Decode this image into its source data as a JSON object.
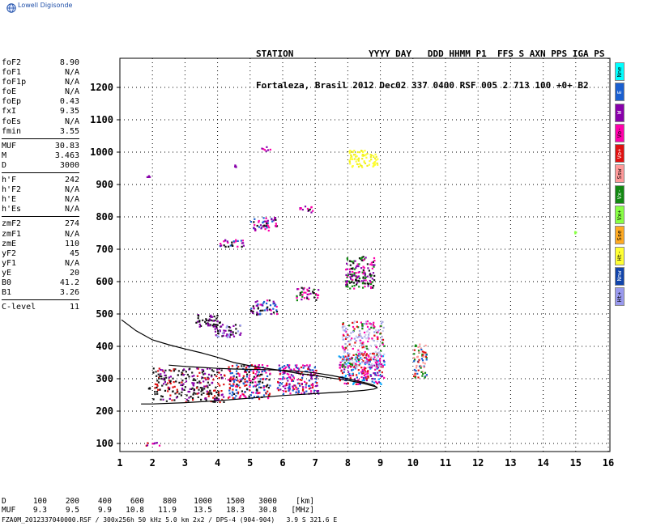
{
  "brand": "Lowell Digisonde",
  "header": {
    "line1": "STATION              YYYY DAY   DDD HHMM P1  FFS S AXN PPS IGA PS",
    "line2": "Fortaleza, Brasil 2012 Dec02 337 0400 RSF 005 2 713 100 +0+ B2"
  },
  "params": [
    [
      [
        "foF2",
        "8.90"
      ],
      [
        "foF1",
        "N/A"
      ],
      [
        "foF1p",
        "N/A"
      ],
      [
        "foE",
        "N/A"
      ],
      [
        "foEp",
        "0.43"
      ],
      [
        "fxI",
        "9.35"
      ],
      [
        "foEs",
        "N/A"
      ],
      [
        "fmin",
        "3.55"
      ]
    ],
    [
      [
        "MUF",
        "30.83"
      ],
      [
        "M",
        "3.463"
      ],
      [
        "D",
        "3000"
      ]
    ],
    [
      [
        "h'F",
        "242"
      ],
      [
        "h'F2",
        "N/A"
      ],
      [
        "h'E",
        "N/A"
      ],
      [
        "h'Es",
        "N/A"
      ]
    ],
    [
      [
        "zmF2",
        "274"
      ],
      [
        "zmF1",
        "N/A"
      ],
      [
        "zmE",
        "110"
      ],
      [
        "yF2",
        "45"
      ],
      [
        "yF1",
        "N/A"
      ],
      [
        "yE",
        "20"
      ],
      [
        "B0",
        "41.2"
      ],
      [
        "B1",
        "3.26"
      ]
    ],
    [
      [
        "C-level",
        "11"
      ]
    ]
  ],
  "legend": [
    {
      "label": "Nne",
      "color": "#00ffff"
    },
    {
      "label": "E",
      "color": "#1a5fd0"
    },
    {
      "label": "W",
      "color": "#8800aa"
    },
    {
      "label": "Vo-",
      "color": "#ff00aa"
    },
    {
      "label": "Vo+",
      "color": "#e01010"
    },
    {
      "label": "Ssw",
      "color": "#ff9999"
    },
    {
      "label": "Vx-",
      "color": "#118811"
    },
    {
      "label": "Vx+",
      "color": "#88ff44"
    },
    {
      "label": "Sse",
      "color": "#ffaa22"
    },
    {
      "label": "Ht-",
      "color": "#ffff33"
    },
    {
      "label": "Nnw",
      "color": "#1144aa"
    },
    {
      "label": "Ht+",
      "color": "#9999ee"
    }
  ],
  "footer": {
    "row1": [
      "D",
      "100",
      "200",
      "400",
      "600",
      "800",
      "1000",
      "1500",
      "3000",
      "[km]"
    ],
    "row2": [
      "MUF",
      "9.3",
      "9.5",
      "9.9",
      "10.8",
      "11.9",
      "13.5",
      "18.3",
      "30.8",
      "[MHz]"
    ],
    "filename": "FZA0M_2012337040000.RSF / 300x256h 50 kHz 5.0 km 2x2 / DPS-4 (904-904)   3.9 S 321.6 E"
  },
  "chart_data": {
    "type": "scatter",
    "title": "",
    "xlabel": "",
    "ylabel": "",
    "xlim": [
      1,
      16.05
    ],
    "ylim": [
      75,
      1290
    ],
    "xticks": [
      1,
      2,
      3,
      4,
      5,
      6,
      7,
      8,
      9,
      10,
      11,
      12,
      13,
      14,
      15,
      16
    ],
    "yticks": [
      100,
      200,
      300,
      400,
      500,
      600,
      700,
      800,
      900,
      1000,
      1100,
      1200
    ],
    "grid": true,
    "profile_curve": {
      "x": [
        1.05,
        1.5,
        2.0,
        2.5,
        3.0,
        3.5,
        4.0,
        4.5,
        5.0,
        5.5,
        6.0,
        6.5,
        7.0,
        7.5,
        8.0,
        8.5,
        8.9
      ],
      "y": [
        482,
        448,
        420,
        405,
        392,
        380,
        366,
        350,
        340,
        332,
        325,
        316,
        310,
        302,
        295,
        285,
        274
      ]
    },
    "trace_curve": {
      "x": [
        1.65,
        2.0,
        3.0,
        4.0,
        5.0,
        6.0,
        7.0,
        8.0,
        8.5,
        8.8,
        8.9,
        8.8,
        8.6,
        8.3,
        8.0,
        7.5,
        7.0,
        6.5,
        6.0,
        5.5,
        5.0,
        4.5,
        4.0,
        3.5,
        3.0,
        2.5
      ],
      "y": [
        222,
        222,
        226,
        232,
        240,
        248,
        254,
        260,
        264,
        268,
        272,
        280,
        286,
        293,
        300,
        310,
        318,
        323,
        326,
        328,
        329,
        330,
        332,
        335,
        338,
        342
      ]
    },
    "echo_clusters": [
      {
        "x": [
          2.0,
          4.2
        ],
        "y": [
          230,
          335
        ],
        "colors": [
          "#e01010",
          "#111111",
          "#8800aa",
          "#222222"
        ]
      },
      {
        "x": [
          4.3,
          5.6
        ],
        "y": [
          240,
          345
        ],
        "colors": [
          "#e01010",
          "#111111",
          "#ff00aa",
          "#1a5fd0"
        ]
      },
      {
        "x": [
          5.8,
          7.1
        ],
        "y": [
          255,
          345
        ],
        "colors": [
          "#e01010",
          "#ff00aa",
          "#8800aa",
          "#1a5fd0"
        ]
      },
      {
        "x": [
          7.7,
          9.1
        ],
        "y": [
          285,
          375
        ],
        "colors": [
          "#ff00aa",
          "#1a5fd0",
          "#e01010",
          "#8800aa",
          "#00aaff"
        ]
      },
      {
        "x": [
          7.8,
          9.1
        ],
        "y": [
          335,
          480
        ],
        "colors": [
          "#9999ee",
          "#aaaadd",
          "#ccccee",
          "#ff00aa",
          "#118811",
          "#e01010"
        ]
      },
      {
        "x": [
          10.0,
          10.4
        ],
        "y": [
          305,
          410
        ],
        "colors": [
          "#e01010",
          "#118811",
          "#ff9999",
          "#1a5fd0"
        ]
      },
      {
        "x": [
          4.0,
          4.8
        ],
        "y": [
          710,
          732
        ],
        "colors": [
          "#ff00aa",
          "#8800aa",
          "#1a5fd0",
          "#111111"
        ]
      },
      {
        "x": [
          5.0,
          5.8
        ],
        "y": [
          760,
          800
        ],
        "colors": [
          "#ff00aa",
          "#8800aa",
          "#1a5fd0",
          "#111111"
        ]
      },
      {
        "x": [
          6.5,
          6.9
        ],
        "y": [
          815,
          835
        ],
        "colors": [
          "#ff00aa",
          "#8800aa",
          "#111111"
        ]
      },
      {
        "x": [
          5.0,
          5.8
        ],
        "y": [
          500,
          545
        ],
        "colors": [
          "#ff00aa",
          "#1a5fd0",
          "#111111",
          "#8800aa"
        ]
      },
      {
        "x": [
          6.4,
          7.1
        ],
        "y": [
          545,
          585
        ],
        "colors": [
          "#ff00aa",
          "#8800aa",
          "#111111",
          "#118811"
        ]
      },
      {
        "x": [
          7.9,
          8.8
        ],
        "y": [
          580,
          680
        ],
        "colors": [
          "#ff00aa",
          "#8800aa",
          "#118811",
          "#111111"
        ]
      },
      {
        "x": [
          3.9,
          4.7
        ],
        "y": [
          430,
          470
        ],
        "colors": [
          "#9999ee",
          "#8800aa",
          "#111111"
        ]
      },
      {
        "x": [
          3.3,
          4.1
        ],
        "y": [
          460,
          500
        ],
        "colors": [
          "#111111",
          "#8800aa"
        ]
      },
      {
        "x": [
          8.0,
          8.9
        ],
        "y": [
          955,
          1010
        ],
        "colors": [
          "#ffff33",
          "#eeee22"
        ]
      },
      {
        "x": [
          1.7,
          2.2
        ],
        "y": [
          95,
          105
        ],
        "colors": [
          "#ff00aa",
          "#e01010",
          "#8800aa"
        ]
      },
      {
        "x": [
          1.8,
          1.9
        ],
        "y": [
          270,
          275
        ],
        "colors": [
          "#111111"
        ]
      },
      {
        "x": [
          4.45,
          4.55
        ],
        "y": [
          955,
          965
        ],
        "colors": [
          "#8800aa"
        ]
      },
      {
        "x": [
          5.3,
          5.6
        ],
        "y": [
          1005,
          1020
        ],
        "colors": [
          "#8800aa",
          "#ff00aa"
        ]
      },
      {
        "x": [
          1.8,
          1.9
        ],
        "y": [
          925,
          935
        ],
        "colors": [
          "#8800aa"
        ]
      },
      {
        "x": [
          14.9,
          15.0
        ],
        "y": [
          750,
          765
        ],
        "colors": [
          "#88ff44"
        ]
      }
    ]
  }
}
